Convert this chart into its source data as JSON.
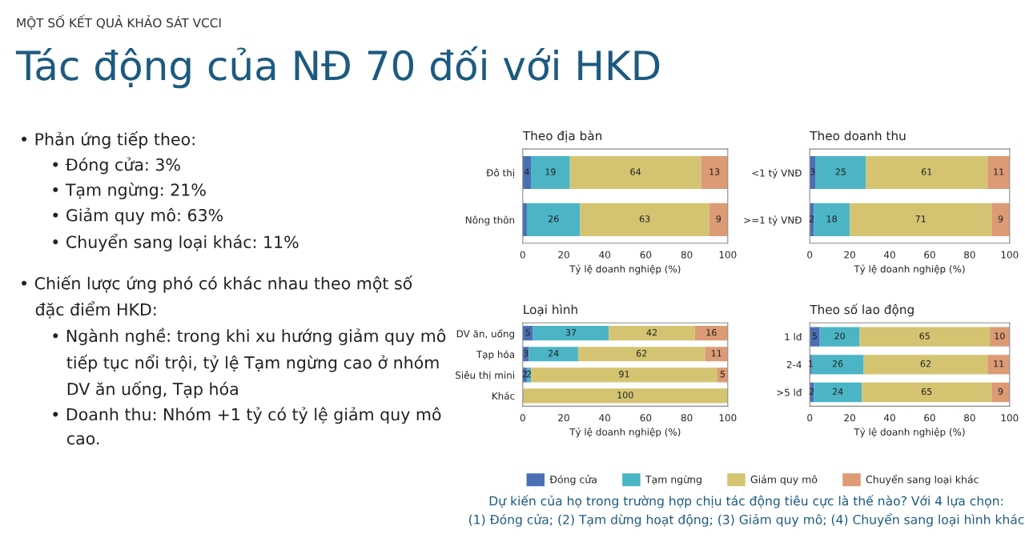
{
  "chart_data": [
    {
      "type": "other",
      "title": "Tác động của NĐ 70 đối với HKD",
      "subtitle": "MỘT SỐ KẾT QUẢ KHẢO SÁT VCCI",
      "annotations": [
        "• Phản ứng tiếp theo:\n      • Đóng cửa: 3%\n      • Tạm ngừng: 21%\n      • Giảm quy mô: 63%\n      • Chuyển sang loại khác: 11%",
        "• Chiến lược ứng phó có khác nhau theo một số\n   đặc điểm HKD:\n      • Ngành nghề: trong khi xu hướng giảm quy mô\n         tiếp tục nổi trội, tỷ lệ Tạm ngừng cao ở nhóm\n         DV ăn uống, Tạp hóa\n      • Doanh thu: Nhóm +1 tỷ có tỷ lệ giảm quy mô\n         cao.",
        "Dự kiến của họ trong trường hợp chịu tác động tiêu cực là thế nào? Với 4 lựa chọn:\n(1) Đóng cửa; (2) Tạm dừng hoạt động; (3) Giảm quy mô; (4) Chuyển sang loại hình khác"
      ]
    },
    {
      "type": "bar",
      "orientation": "horizontal",
      "stacked": true,
      "title": "Theo địa bàn",
      "xlabel": "Tỷ lệ doanh nghiệp (%)",
      "categories": [
        "Đô thị",
        "Nông thôn"
      ],
      "xlim": [
        0,
        100
      ],
      "xticks": [
        0,
        20,
        40,
        60,
        80,
        100
      ],
      "grid": false,
      "legend": false,
      "series": [
        {
          "color": "#4a6fb5",
          "values": [
            4,
            2
          ],
          "value_labels": [
            "4",
            null
          ]
        },
        {
          "color": "#4bb5c6",
          "values": [
            19,
            26
          ],
          "value_labels": [
            "19",
            "26"
          ]
        },
        {
          "color": "#d4c472",
          "values": [
            64,
            63
          ],
          "value_labels": [
            "64",
            "63"
          ]
        },
        {
          "color": "#dc9a75",
          "values": [
            13,
            9
          ],
          "value_labels": [
            "13",
            "9"
          ]
        }
      ]
    },
    {
      "type": "bar",
      "orientation": "horizontal",
      "stacked": true,
      "title": "Theo doanh thu",
      "xlabel": "Tỷ lệ doanh nghiệp (%)",
      "categories": [
        "<1 tỷ VNĐ",
        ">=1 tỷ VNĐ"
      ],
      "xlim": [
        0,
        100
      ],
      "xticks": [
        0,
        20,
        40,
        60,
        80,
        100
      ],
      "grid": false,
      "legend": false,
      "series": [
        {
          "color": "#4a6fb5",
          "values": [
            3,
            2
          ],
          "value_labels": [
            "3",
            "2"
          ]
        },
        {
          "color": "#4bb5c6",
          "values": [
            25,
            18
          ],
          "value_labels": [
            "25",
            "18"
          ]
        },
        {
          "color": "#d4c472",
          "values": [
            61,
            71
          ],
          "value_labels": [
            "61",
            "71"
          ]
        },
        {
          "color": "#dc9a75",
          "values": [
            11,
            9
          ],
          "value_labels": [
            "11",
            "9"
          ]
        }
      ]
    },
    {
      "type": "bar",
      "orientation": "horizontal",
      "stacked": true,
      "title": "Loại hình",
      "xlabel": "Tỷ lệ doanh nghiệp (%)",
      "categories": [
        "DV ăn, uống",
        "Tạp hóa",
        "Siêu thị mini",
        "Khác"
      ],
      "xlim": [
        0,
        100
      ],
      "xticks": [
        0,
        20,
        40,
        60,
        80,
        100
      ],
      "grid": false,
      "legend": "bottom",
      "series": [
        {
          "name": "Đóng cửa",
          "color": "#4a6fb5",
          "values": [
            5,
            3,
            2,
            0
          ],
          "value_labels": [
            "5",
            "3",
            "2",
            null
          ]
        },
        {
          "name": "Tạm ngừng",
          "color": "#4bb5c6",
          "values": [
            37,
            24,
            2,
            0
          ],
          "value_labels": [
            "37",
            "24",
            "2",
            null
          ]
        },
        {
          "name": "Giảm quy mô",
          "color": "#d4c472",
          "values": [
            42,
            62,
            91,
            100
          ],
          "value_labels": [
            "42",
            "62",
            "91",
            "100"
          ]
        },
        {
          "name": "Chuyển sang loại khác",
          "color": "#dc9a75",
          "values": [
            16,
            11,
            5,
            0
          ],
          "value_labels": [
            "16",
            "11",
            "5",
            null
          ]
        }
      ]
    },
    {
      "type": "bar",
      "orientation": "horizontal",
      "stacked": true,
      "title": "Theo số lao động",
      "xlabel": "Tỷ lệ doanh nghiệp (%)",
      "categories": [
        "1 lđ",
        "2-4",
        ">5 lđ"
      ],
      "xlim": [
        0,
        100
      ],
      "xticks": [
        0,
        20,
        40,
        60,
        80,
        100
      ],
      "grid": false,
      "legend": false,
      "series": [
        {
          "color": "#4a6fb5",
          "values": [
            5,
            1,
            2
          ],
          "value_labels": [
            "5",
            "1",
            "2"
          ]
        },
        {
          "color": "#4bb5c6",
          "values": [
            20,
            26,
            24
          ],
          "value_labels": [
            "20",
            "26",
            "24"
          ]
        },
        {
          "color": "#d4c472",
          "values": [
            65,
            62,
            65
          ],
          "value_labels": [
            "65",
            "62",
            "65"
          ]
        },
        {
          "color": "#dc9a75",
          "values": [
            10,
            11,
            9
          ],
          "value_labels": [
            "10",
            "11",
            "9"
          ]
        }
      ]
    }
  ]
}
